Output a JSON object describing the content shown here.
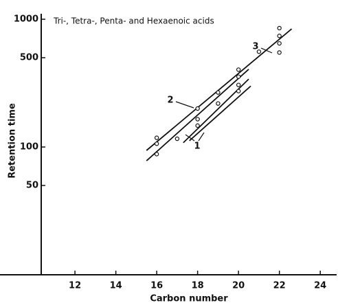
{
  "chart_data": {
    "type": "scatter",
    "title": "Tri-, Tetra-, Penta- and Hexaenoic acids",
    "x_label": "Carbon number",
    "y_label": "Retention time",
    "log_y": true,
    "color": "#111111",
    "xlim": [
      10.35,
      24.8
    ],
    "ylim": [
      10,
      1000
    ],
    "xticks": [
      12,
      14,
      16,
      18,
      20,
      22,
      24
    ],
    "yticks": [
      50,
      100,
      500,
      1000
    ],
    "series": [
      {
        "color": "#111111",
        "x": [
          16,
          16,
          16,
          17,
          18,
          18,
          18,
          19,
          19,
          20,
          20,
          20,
          20,
          21,
          22,
          22,
          22,
          22
        ],
        "values": [
          118,
          106,
          88,
          116,
          200,
          165,
          147,
          267,
          219,
          403,
          355,
          306,
          274,
          557,
          852,
          741,
          647,
          549
        ]
      }
    ],
    "lines": [
      {
        "x": [
          15.5,
          22.6
        ],
        "values": [
          94,
          840
        ]
      },
      {
        "x": [
          15.5,
          20.5
        ],
        "values": [
          78,
          406
        ]
      },
      {
        "x": [
          17.3,
          20.5
        ],
        "values": [
          108,
          340
        ]
      },
      {
        "x": [
          17.6,
          20.6
        ],
        "values": [
          112,
          300
        ]
      }
    ],
    "annotations": [
      "1",
      "2",
      "3"
    ]
  }
}
